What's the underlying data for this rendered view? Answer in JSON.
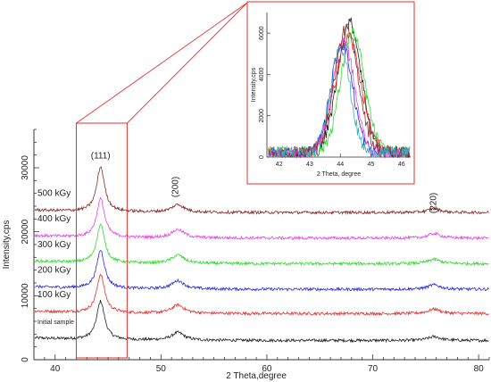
{
  "chart_data": [
    {
      "type": "line",
      "xlabel": "2 Theta,degree",
      "ylabel": "Intensity,cps",
      "xlim": [
        38,
        81
      ],
      "ylim": [
        0,
        36000
      ],
      "x_ticks": [
        40,
        50,
        60,
        70,
        80
      ],
      "y_ticks": [
        0,
        10000,
        20000,
        30000
      ],
      "annotations": [
        "(111)",
        "(200)",
        "(220)"
      ],
      "highlight_range_x": [
        42,
        46.8
      ],
      "series": [
        {
          "name": "Initial sample",
          "color": "#222222",
          "baseline": 3000,
          "peaks": [
            {
              "x": 44.3,
              "height": 6000
            },
            {
              "x": 51.6,
              "height": 1200
            },
            {
              "x": 75.8,
              "height": 600
            }
          ]
        },
        {
          "name": "100 kGy",
          "color": "#e53030",
          "baseline": 7200,
          "peaks": [
            {
              "x": 44.3,
              "height": 6000
            },
            {
              "x": 51.6,
              "height": 1300
            },
            {
              "x": 75.8,
              "height": 700
            }
          ]
        },
        {
          "name": "200 kGy",
          "color": "#2a2adf",
          "baseline": 11000,
          "peaks": [
            {
              "x": 44.3,
              "height": 6000
            },
            {
              "x": 51.6,
              "height": 1300
            },
            {
              "x": 75.8,
              "height": 700
            }
          ]
        },
        {
          "name": "300 kGy",
          "color": "#2edc2e",
          "baseline": 15000,
          "peaks": [
            {
              "x": 44.3,
              "height": 6000
            },
            {
              "x": 51.6,
              "height": 1300
            },
            {
              "x": 75.8,
              "height": 700
            }
          ]
        },
        {
          "name": "400 kGy",
          "color": "#e844e8",
          "baseline": 19000,
          "peaks": [
            {
              "x": 44.3,
              "height": 6000
            },
            {
              "x": 51.6,
              "height": 1300
            },
            {
              "x": 75.8,
              "height": 700
            }
          ]
        },
        {
          "name": "500 kGy",
          "color": "#8a2a2a",
          "baseline": 23000,
          "peaks": [
            {
              "x": 44.3,
              "height": 7000
            },
            {
              "x": 51.6,
              "height": 1200
            },
            {
              "x": 75.8,
              "height": 600
            }
          ]
        }
      ]
    },
    {
      "type": "line",
      "xlabel": "2 Theta, degree",
      "ylabel": "Intensity,cps",
      "xlim": [
        41.6,
        46.3
      ],
      "ylim": [
        0,
        7000
      ],
      "x_ticks": [
        42,
        43,
        44,
        45,
        46
      ],
      "y_ticks": [
        0,
        2000,
        4000,
        6000
      ],
      "series": [
        {
          "color": "#222222",
          "center": 44.3,
          "height": 6300,
          "width": 0.55
        },
        {
          "color": "#e53030",
          "center": 44.25,
          "height": 5600,
          "width": 0.6
        },
        {
          "color": "#2a2adf",
          "center": 44.05,
          "height": 5300,
          "width": 0.5
        },
        {
          "color": "#2edc2e",
          "center": 44.4,
          "height": 5800,
          "width": 0.55
        },
        {
          "color": "#e844e8",
          "center": 44.1,
          "height": 5500,
          "width": 0.5
        },
        {
          "color": "#8a2a2a",
          "center": 44.2,
          "height": 6000,
          "width": 0.55
        },
        {
          "color": "#30b0c0",
          "center": 44.0,
          "height": 5200,
          "width": 0.45
        }
      ]
    }
  ]
}
